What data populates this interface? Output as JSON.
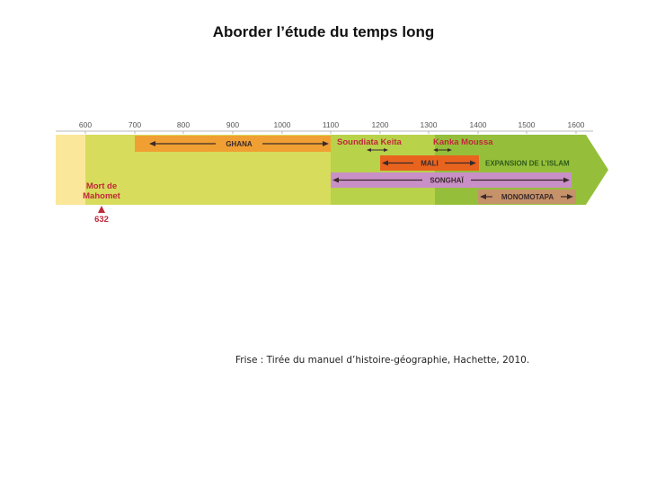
{
  "title": "Aborder l’étude du temps long",
  "caption": "Frise : Tirée du manuel d’histoire-géographie, Hachette, 2010.",
  "timeline": {
    "ticks": [
      "600",
      "700",
      "800",
      "900",
      "1000",
      "1100",
      "1200",
      "1300",
      "1400",
      "1500",
      "1600"
    ],
    "event": {
      "label_line1": "Mort de",
      "label_line2": "Mahomet",
      "year": "632"
    },
    "bands": {
      "ghana": "GHANA",
      "mali": "MALI",
      "songhai": "SONGHAÏ",
      "monomotapa": "MONOMOTAPA",
      "islam": "EXPANSION DE L’ISLAM"
    },
    "rulers": {
      "soundiata": "Soundiata Keita",
      "kanka": "Kanka Moussa"
    },
    "colors": {
      "pale_yellow": "#fbe79a",
      "yellow_green": "#d7dc5c",
      "green": "#95bf3a",
      "orange": "#f0a032",
      "orange_dark": "#e8641e",
      "purple": "#c990c8",
      "brown": "#c6926a",
      "red": "#c0283a"
    }
  }
}
